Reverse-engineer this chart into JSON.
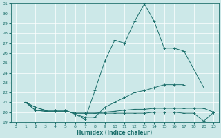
{
  "xlabel": "Humidex (Indice chaleur)",
  "bg_color": "#cce8e8",
  "line_color": "#1a6e6a",
  "xlim": [
    -0.5,
    20.5
  ],
  "ylim": [
    19,
    31
  ],
  "xtick_labels": [
    "0",
    "1",
    "2",
    "3",
    "4",
    "5",
    "6",
    "7",
    "8",
    "9",
    "10",
    "11",
    "12",
    "13",
    "14",
    "15",
    "16",
    "17",
    "18",
    "20",
    "23"
  ],
  "ytick_labels": [
    "19",
    "20",
    "21",
    "22",
    "23",
    "24",
    "25",
    "26",
    "27",
    "28",
    "29",
    "30",
    "31"
  ],
  "lines": [
    {
      "xi": [
        1,
        2,
        3,
        4,
        5,
        6,
        7,
        8,
        9,
        10,
        11,
        12,
        13
      ],
      "y": [
        21.0,
        20.5,
        20.2,
        20.2,
        20.2,
        19.8,
        19.3,
        22.2,
        25.2,
        27.3,
        27.0,
        29.2,
        31.0
      ]
    },
    {
      "xi": [
        13,
        14,
        15,
        16,
        17
      ],
      "y": [
        31.0,
        29.2,
        26.5,
        26.5,
        26.2
      ]
    },
    {
      "xi": [
        17,
        19
      ],
      "y": [
        26.2,
        22.5
      ]
    },
    {
      "xi": [
        1,
        2,
        3,
        4,
        5,
        6,
        7,
        8,
        9,
        10,
        11,
        12,
        13,
        14,
        15,
        16,
        17
      ],
      "y": [
        21.0,
        20.5,
        20.2,
        20.2,
        20.2,
        19.8,
        19.5,
        19.5,
        20.5,
        21.0,
        21.5,
        22.0,
        22.2,
        22.5,
        22.8,
        22.8,
        22.8
      ]
    },
    {
      "xi": [
        1,
        2,
        3,
        4,
        5,
        6,
        7,
        8,
        9,
        10,
        11,
        12,
        13,
        14,
        15,
        16,
        17,
        18,
        19,
        20
      ],
      "y": [
        21.0,
        20.2,
        20.1,
        20.1,
        20.1,
        19.9,
        19.9,
        19.9,
        20.0,
        20.1,
        20.2,
        20.3,
        20.3,
        20.4,
        20.4,
        20.4,
        20.4,
        20.4,
        20.4,
        20.0
      ]
    },
    {
      "xi": [
        1,
        2,
        3,
        4,
        5,
        6,
        7,
        8,
        9,
        10,
        11,
        12,
        13,
        14,
        15,
        16,
        17,
        18,
        19,
        20
      ],
      "y": [
        21.0,
        20.2,
        20.1,
        20.1,
        20.1,
        19.9,
        19.9,
        19.9,
        19.9,
        19.9,
        19.9,
        19.9,
        19.9,
        20.0,
        20.0,
        20.0,
        19.9,
        19.9,
        19.1,
        20.0
      ]
    }
  ]
}
